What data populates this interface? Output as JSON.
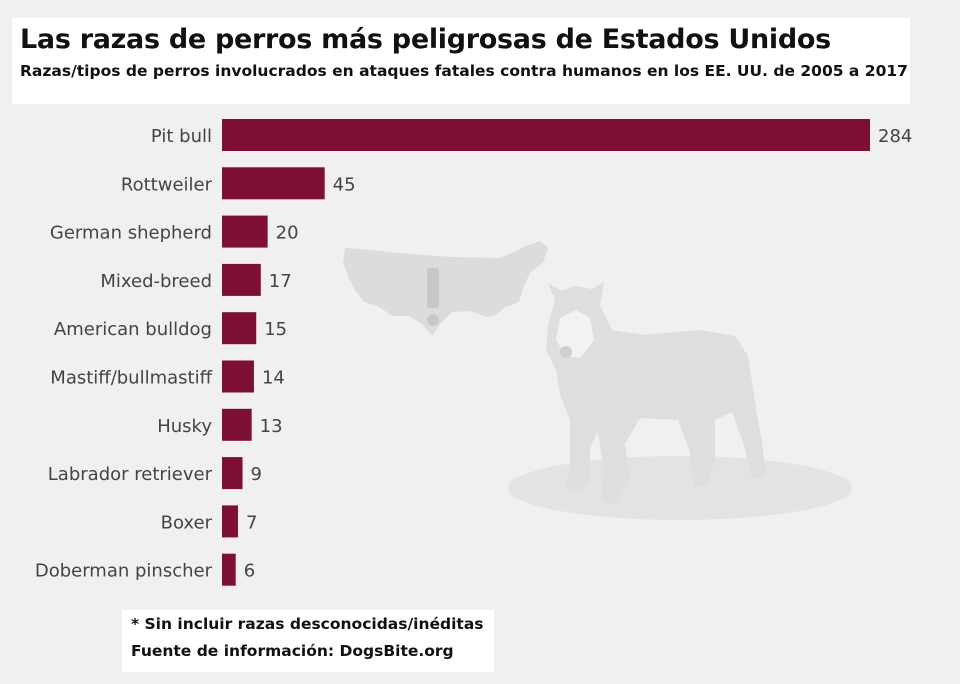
{
  "colors": {
    "bar": "#7d0f35",
    "background": "#f0f0f0",
    "text": "#444444",
    "illustration": "#dcdcdc"
  },
  "header": {
    "title": "Las razas de perros más peligrosas de Estados Unidos",
    "subtitle": "Razas/tipos de perros involucrados en ataques fatales contra humanos en los EE. UU. de 2005 a 2017"
  },
  "footer": {
    "note": "* Sin incluir razas desconocidas/inéditas",
    "source": "Fuente de información: DogsBite.org"
  },
  "illustration": "us-map-and-pit-bull-silhouette",
  "chart_data": {
    "type": "bar",
    "orientation": "horizontal",
    "title": "Las razas de perros más peligrosas de Estados Unidos",
    "subtitle": "Razas/tipos de perros involucrados en ataques fatales contra humanos en los EE. UU. de 2005 a 2017",
    "categories": [
      "Pit bull",
      "Rottweiler",
      "German shepherd",
      "Mixed-breed",
      "American bulldog",
      "Mastiff/bullmastiff",
      "Husky",
      "Labrador retriever",
      "Boxer",
      "Doberman pinscher"
    ],
    "values": [
      284,
      45,
      20,
      17,
      15,
      14,
      13,
      9,
      7,
      6
    ],
    "xlim": [
      0,
      284
    ],
    "grid": false,
    "legend": "none",
    "data_labels": true
  }
}
